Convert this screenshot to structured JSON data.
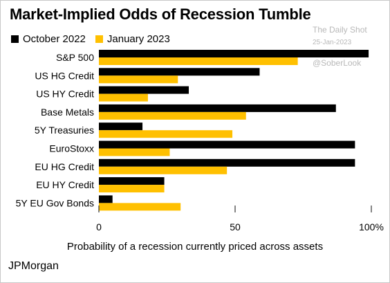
{
  "title": "Market-Implied Odds of Recession Tumble",
  "watermark": {
    "site": "The Daily Shot",
    "date": "25-Jan-2023",
    "handle": "@SoberLook"
  },
  "source": "JPMorgan",
  "colors": {
    "october_2022": "#000000",
    "january_2023": "#ffc000",
    "axis": "#333333"
  },
  "chart_data": {
    "type": "bar",
    "orientation": "horizontal",
    "title": "Market-Implied Odds of Recession Tumble",
    "xlabel": "Probability of a recession currently priced across assets",
    "ylabel": "",
    "xlim": [
      0,
      100
    ],
    "x_ticks": [
      {
        "value": 0,
        "label": "0"
      },
      {
        "value": 50,
        "label": "50"
      },
      {
        "value": 100,
        "label": "100%"
      }
    ],
    "legend_position": "top-left",
    "grid": false,
    "categories": [
      "S&P 500",
      "US HG Credit",
      "US HY Credit",
      "Base Metals",
      "5Y Treasuries",
      "EuroStoxx",
      "EU HG Credit",
      "EU HY Credit",
      "5Y EU Gov Bonds"
    ],
    "series": [
      {
        "name": "October 2022",
        "color": "#000000",
        "values": [
          99,
          59,
          33,
          87,
          16,
          94,
          94,
          24,
          5
        ]
      },
      {
        "name": "January 2023",
        "color": "#ffc000",
        "values": [
          73,
          29,
          18,
          54,
          49,
          26,
          47,
          24,
          30
        ]
      }
    ]
  }
}
